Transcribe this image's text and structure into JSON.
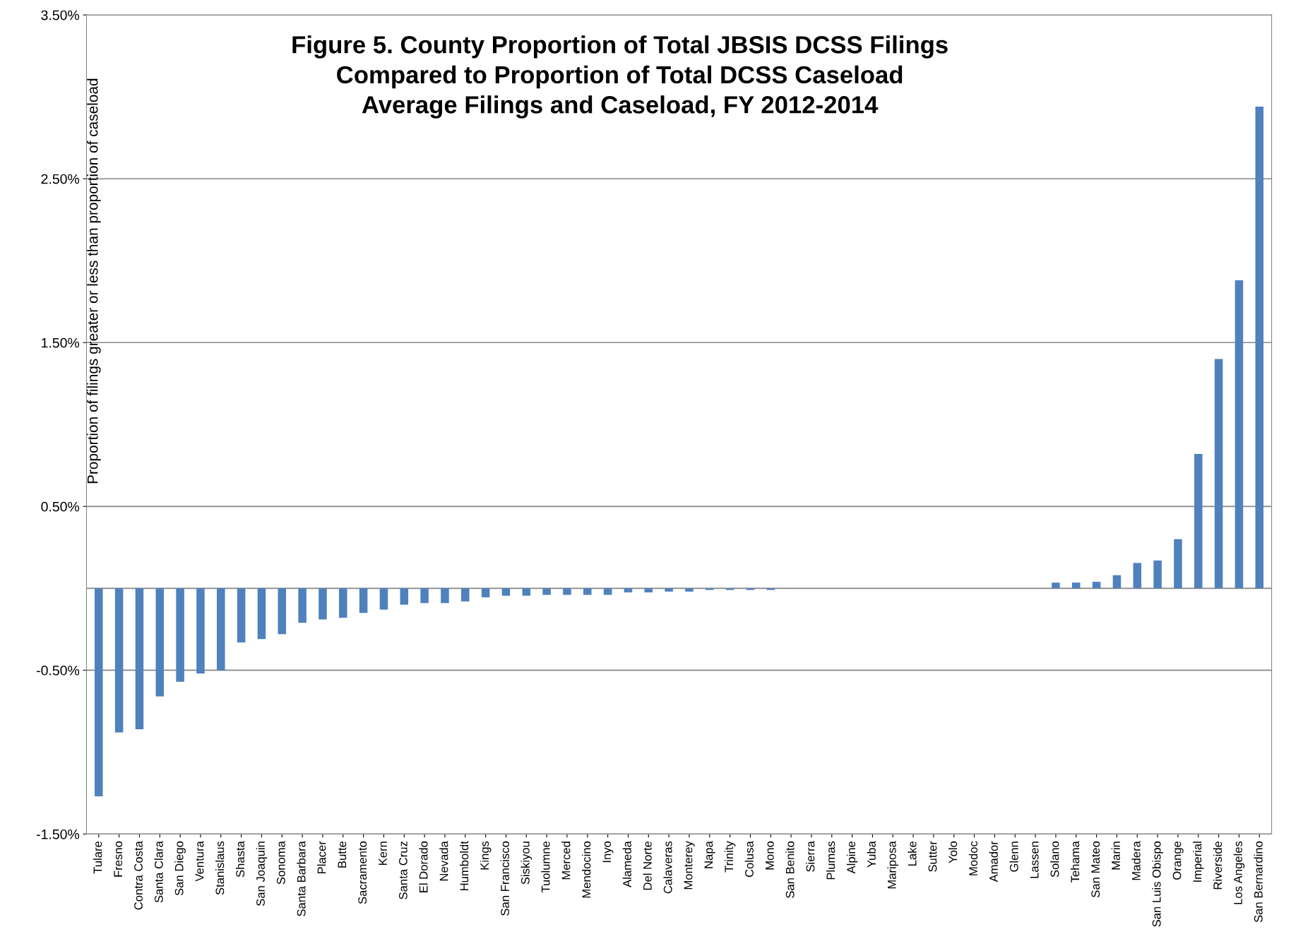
{
  "chart_data": {
    "type": "bar",
    "title": "Figure 5. County Proportion of Total JBSIS DCSS Filings\nCompared to Proportion of Total DCSS Caseload\nAverage Filings and Caseload, FY 2012-2014",
    "ylabel": "Proportion of filings greater or less than proportion of caseload",
    "categories": [
      "Tulare",
      "Fresno",
      "Contra Costa",
      "Santa Clara",
      "San Diego",
      "Ventura",
      "Stanislaus",
      "Shasta",
      "San Joaquin",
      "Sonoma",
      "Santa Barbara",
      "Placer",
      "Butte",
      "Sacramento",
      "Kern",
      "Santa Cruz",
      "El Dorado",
      "Nevada",
      "Humboldt",
      "Kings",
      "San Francisco",
      "Siskiyou",
      "Tuolumne",
      "Merced",
      "Mendocino",
      "Inyo",
      "Alameda",
      "Del Norte",
      "Calaveras",
      "Monterey",
      "Napa",
      "Trinity",
      "Colusa",
      "Mono",
      "San Benito",
      "Sierra",
      "Plumas",
      "Alpine",
      "Yuba",
      "Mariposa",
      "Lake",
      "Sutter",
      "Yolo",
      "Modoc",
      "Amador",
      "Glenn",
      "Lassen",
      "Solano",
      "Tehama",
      "San Mateo",
      "Marin",
      "Madera",
      "San Luis Obispo",
      "Orange",
      "Imperial",
      "Riverside",
      "Los Angeles",
      "San Bernardino"
    ],
    "values": [
      -1.27,
      -0.88,
      -0.86,
      -0.66,
      -0.57,
      -0.52,
      -0.5,
      -0.33,
      -0.31,
      -0.28,
      -0.21,
      -0.19,
      -0.18,
      -0.15,
      -0.13,
      -0.1,
      -0.09,
      -0.09,
      -0.08,
      -0.055,
      -0.045,
      -0.045,
      -0.04,
      -0.04,
      -0.04,
      -0.04,
      -0.025,
      -0.025,
      -0.02,
      -0.02,
      -0.01,
      -0.01,
      -0.01,
      -0.01,
      0,
      0,
      0,
      0,
      0,
      0,
      0,
      0,
      0,
      0,
      0,
      0,
      0,
      0.035,
      0.035,
      0.04,
      0.08,
      0.155,
      0.17,
      0.3,
      0.82,
      1.4,
      1.88,
      2.94
    ],
    "color": "#4f81bd",
    "ylim": [
      -1.5,
      3.5
    ],
    "yticks": [
      {
        "value": -1.5,
        "label": "-1.50%"
      },
      {
        "value": -0.5,
        "label": "-0.50%"
      },
      {
        "value": 0.5,
        "label": "0.50%"
      },
      {
        "value": 1.5,
        "label": "1.50%"
      },
      {
        "value": 2.5,
        "label": "2.50%"
      },
      {
        "value": 3.5,
        "label": "3.50%"
      }
    ],
    "grid": "y",
    "ref_lines": [
      {
        "axis": "y",
        "value": 0,
        "color": "#868686"
      }
    ]
  }
}
